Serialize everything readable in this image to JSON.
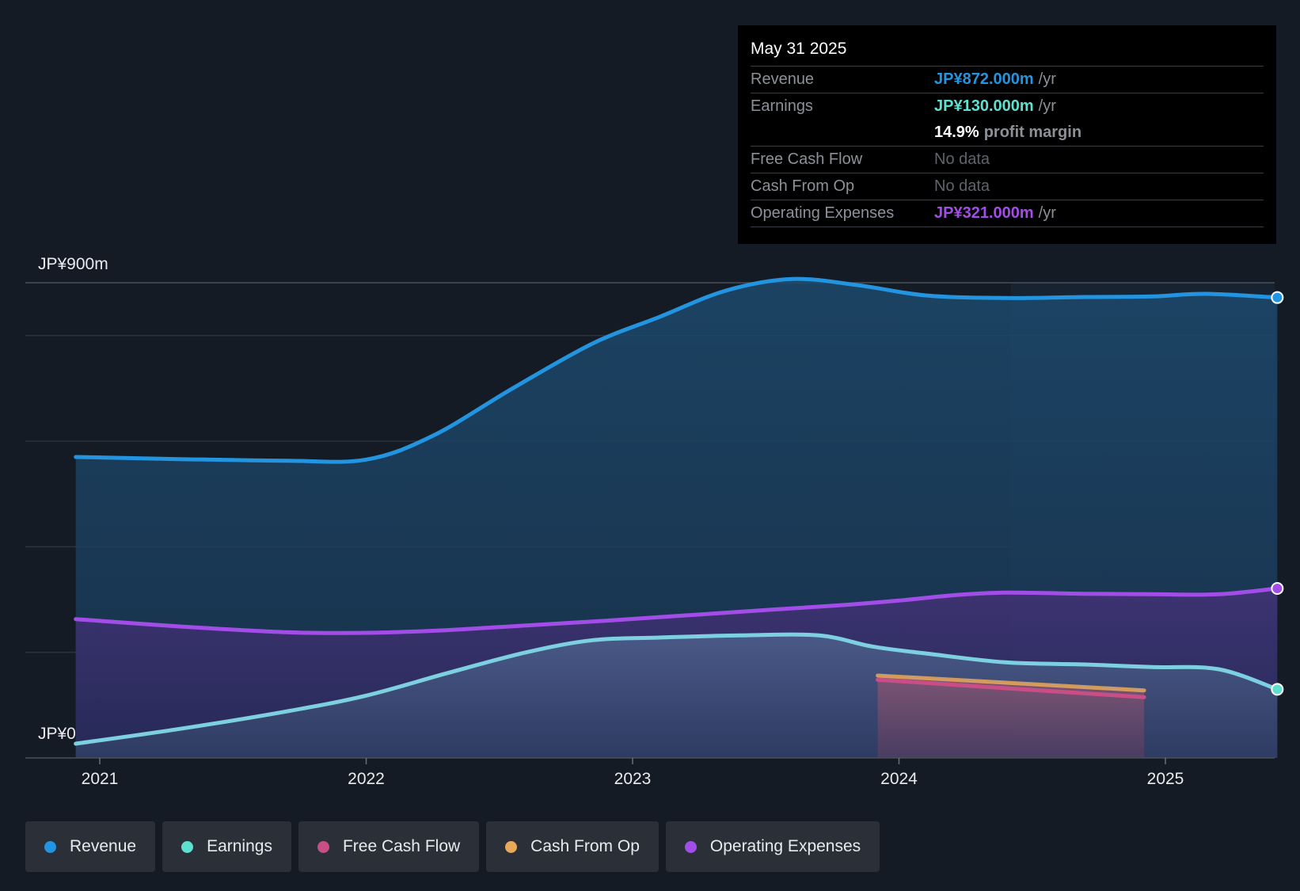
{
  "tooltip": {
    "date": "May 31 2025",
    "revenue_label": "Revenue",
    "revenue_value": "JP¥872.000m",
    "revenue_unit": "/yr",
    "earnings_label": "Earnings",
    "earnings_value": "JP¥130.000m",
    "earnings_unit": "/yr",
    "margin_value": "14.9%",
    "margin_text": "profit margin",
    "fcf_label": "Free Cash Flow",
    "fcf_value": "No data",
    "cfo_label": "Cash From Op",
    "cfo_value": "No data",
    "opex_label": "Operating Expenses",
    "opex_value": "JP¥321.000m",
    "opex_unit": "/yr"
  },
  "legend": [
    {
      "label": "Revenue",
      "color": "#2394df"
    },
    {
      "label": "Earnings",
      "color": "#5ee0d0"
    },
    {
      "label": "Free Cash Flow",
      "color": "#c94e86"
    },
    {
      "label": "Cash From Op",
      "color": "#e8a85a"
    },
    {
      "label": "Operating Expenses",
      "color": "#a34de8"
    }
  ],
  "chart_data": {
    "type": "area",
    "ylim": [
      0,
      900
    ],
    "y_tick_labels": [
      {
        "label": "JP¥900m",
        "value": 900
      },
      {
        "label": "JP¥0",
        "value": 0
      }
    ],
    "x_tick_labels": [
      "2021",
      "2022",
      "2023",
      "2024",
      "2025"
    ],
    "x_tick_years": [
      2021,
      2022,
      2023,
      2024,
      2025
    ],
    "xlim": [
      2020.72,
      2025.42
    ],
    "grid": true,
    "series": [
      {
        "name": "Revenue",
        "color": "#2394df",
        "points": [
          [
            2020.91,
            570
          ],
          [
            2021.3,
            566
          ],
          [
            2021.7,
            563
          ],
          [
            2022.0,
            565
          ],
          [
            2022.25,
            610
          ],
          [
            2022.55,
            700
          ],
          [
            2022.85,
            785
          ],
          [
            2023.1,
            835
          ],
          [
            2023.35,
            885
          ],
          [
            2023.6,
            907
          ],
          [
            2023.85,
            895
          ],
          [
            2024.1,
            876
          ],
          [
            2024.4,
            871
          ],
          [
            2024.7,
            873
          ],
          [
            2024.95,
            874
          ],
          [
            2025.15,
            879
          ],
          [
            2025.42,
            872
          ]
        ]
      },
      {
        "name": "Earnings",
        "color": "#5ee0d0",
        "points": [
          [
            2020.91,
            27
          ],
          [
            2021.3,
            55
          ],
          [
            2021.7,
            88
          ],
          [
            2022.0,
            118
          ],
          [
            2022.3,
            160
          ],
          [
            2022.6,
            200
          ],
          [
            2022.85,
            223
          ],
          [
            2023.1,
            228
          ],
          [
            2023.4,
            232
          ],
          [
            2023.7,
            232
          ],
          [
            2023.9,
            211
          ],
          [
            2024.1,
            198
          ],
          [
            2024.4,
            181
          ],
          [
            2024.7,
            177
          ],
          [
            2024.95,
            172
          ],
          [
            2025.2,
            168
          ],
          [
            2025.42,
            130
          ]
        ]
      },
      {
        "name": "Free Cash Flow",
        "color": "#c94e86",
        "points": [
          [
            2023.92,
            148
          ],
          [
            2024.92,
            115
          ]
        ]
      },
      {
        "name": "Cash From Op",
        "color": "#e8a85a",
        "points": [
          [
            2023.92,
            156
          ],
          [
            2024.92,
            128
          ]
        ]
      },
      {
        "name": "Operating Expenses",
        "color": "#a34de8",
        "points": [
          [
            2020.91,
            263
          ],
          [
            2021.3,
            249
          ],
          [
            2021.7,
            238
          ],
          [
            2022.0,
            237
          ],
          [
            2022.3,
            242
          ],
          [
            2022.6,
            251
          ],
          [
            2022.9,
            260
          ],
          [
            2023.2,
            270
          ],
          [
            2023.5,
            280
          ],
          [
            2023.8,
            290
          ],
          [
            2024.0,
            298
          ],
          [
            2024.2,
            308
          ],
          [
            2024.4,
            313
          ],
          [
            2024.7,
            311
          ],
          [
            2024.95,
            310
          ],
          [
            2025.2,
            310
          ],
          [
            2025.42,
            321
          ]
        ]
      }
    ]
  }
}
